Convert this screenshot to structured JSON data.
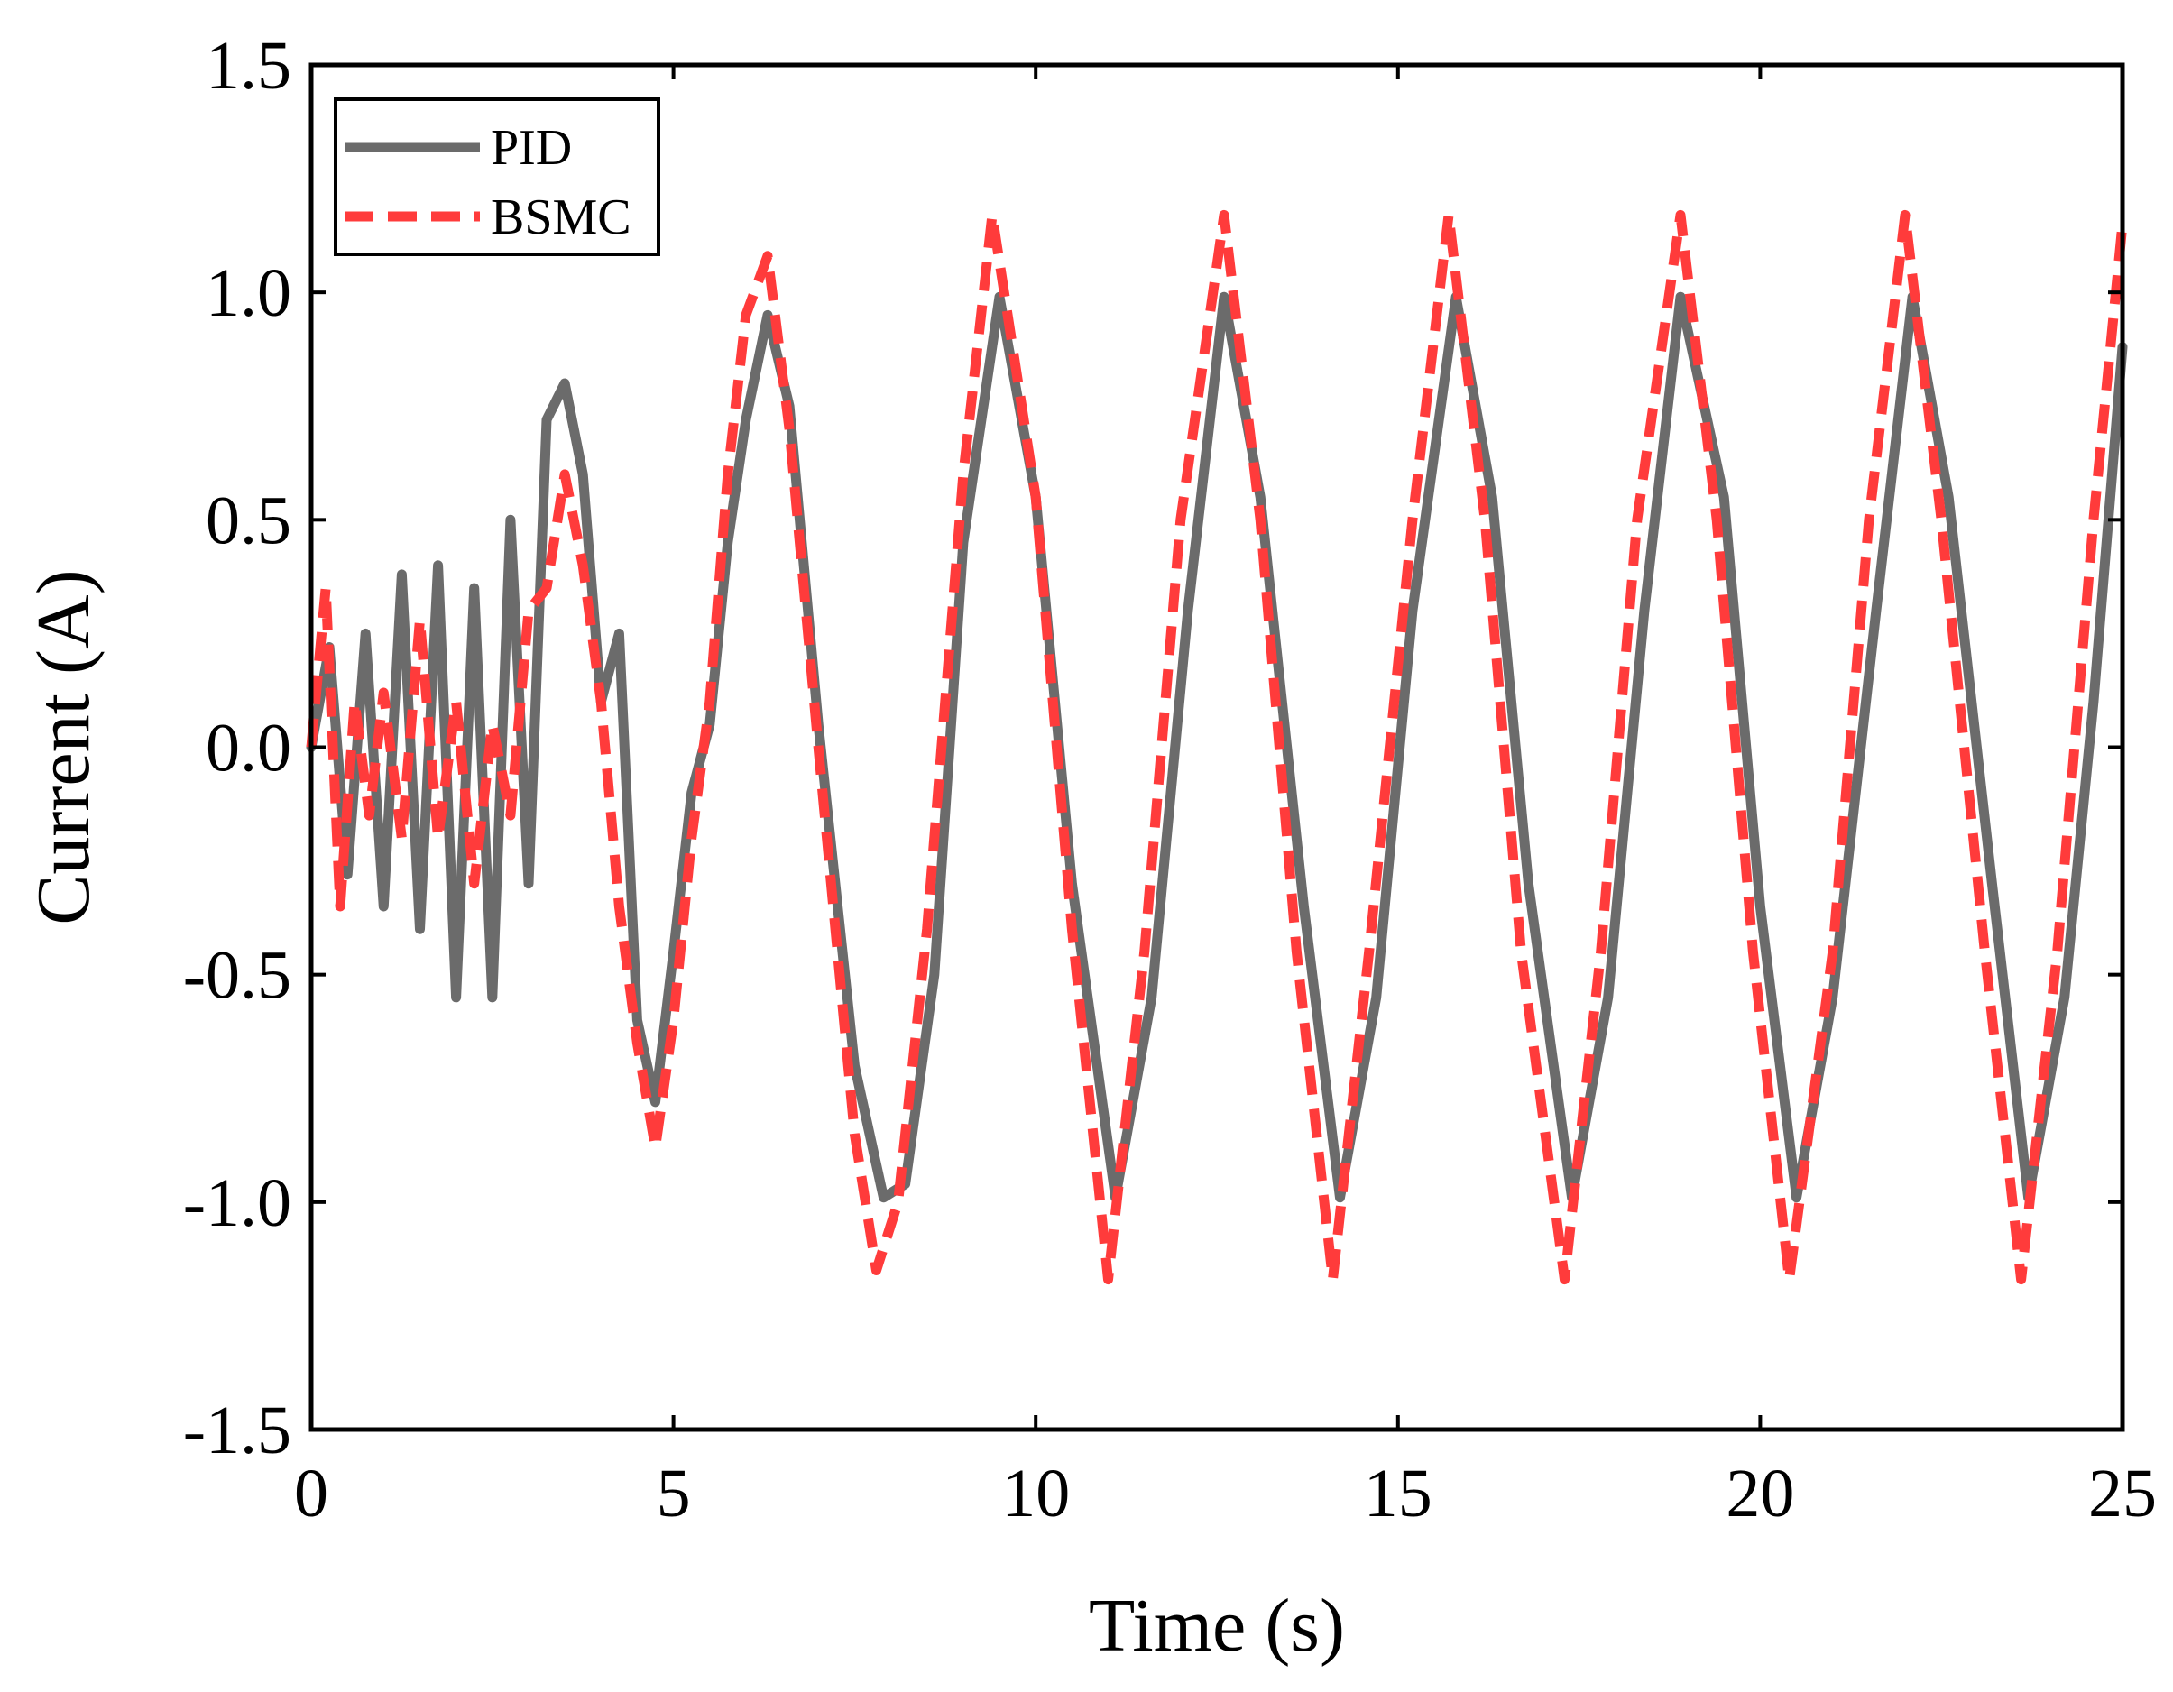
{
  "chart_data": {
    "type": "line",
    "xlabel": "Time (s)",
    "ylabel": "Current (A)",
    "xlim": [
      0,
      25
    ],
    "ylim": [
      -1.5,
      1.5
    ],
    "xticks": [
      0,
      5,
      10,
      15,
      20,
      25
    ],
    "xtick_labels": [
      "0",
      "5",
      "10",
      "15",
      "20",
      "25"
    ],
    "yticks": [
      -1.5,
      -1.0,
      -0.5,
      0.0,
      0.5,
      1.0,
      1.5
    ],
    "ytick_labels": [
      "-1.5",
      "-1.0",
      "-0.5",
      "0.0",
      "0.5",
      "1.0",
      "1.5"
    ],
    "grid": false,
    "legend_position": "top-left",
    "series": [
      {
        "name": "PID",
        "color": "#6b6b6b",
        "style": "solid",
        "x": [
          0,
          0.25,
          0.5,
          0.75,
          1,
          1.25,
          1.5,
          1.75,
          2,
          2.25,
          2.5,
          2.75,
          3,
          3.25,
          3.5,
          3.75,
          4,
          4.25,
          4.5,
          4.75,
          5,
          5.25,
          5.5,
          5.75,
          6,
          6.3,
          6.6,
          7,
          7.5,
          7.9,
          8.2,
          8.6,
          9.0,
          9.5,
          10.0,
          10.5,
          11.1,
          11.6,
          12.1,
          12.6,
          13.1,
          13.7,
          14.2,
          14.7,
          15.2,
          15.8,
          16.3,
          16.8,
          17.4,
          17.9,
          18.4,
          18.9,
          19.5,
          20.0,
          20.5,
          21.0,
          21.6,
          22.1,
          22.6,
          23.2,
          23.7,
          24.2,
          24.6,
          25
        ],
        "y": [
          0.0,
          0.22,
          -0.28,
          0.25,
          -0.35,
          0.38,
          -0.4,
          0.4,
          -0.55,
          0.35,
          -0.55,
          0.5,
          -0.3,
          0.72,
          0.8,
          0.6,
          0.1,
          0.25,
          -0.6,
          -0.78,
          -0.45,
          -0.1,
          0.05,
          0.45,
          0.72,
          0.95,
          0.75,
          0.05,
          -0.7,
          -0.99,
          -0.96,
          -0.5,
          0.45,
          0.99,
          0.55,
          -0.3,
          -0.99,
          -0.55,
          0.3,
          0.99,
          0.55,
          -0.35,
          -0.99,
          -0.55,
          0.3,
          0.99,
          0.55,
          -0.3,
          -0.99,
          -0.55,
          0.3,
          0.99,
          0.55,
          -0.35,
          -0.99,
          -0.55,
          0.3,
          0.99,
          0.55,
          -0.3,
          -0.99,
          -0.55,
          0.1,
          0.88
        ]
      },
      {
        "name": "BSMC",
        "color": "#ff3b3b",
        "style": "dashed",
        "x": [
          0,
          0.2,
          0.4,
          0.6,
          0.8,
          1,
          1.25,
          1.5,
          1.75,
          2,
          2.25,
          2.5,
          2.75,
          3,
          3.25,
          3.5,
          3.75,
          4,
          4.25,
          4.5,
          4.75,
          5,
          5.25,
          5.5,
          5.75,
          6,
          6.3,
          6.6,
          7,
          7.5,
          7.8,
          8.1,
          8.5,
          9.0,
          9.4,
          10.0,
          10.5,
          11.0,
          11.5,
          12.0,
          12.6,
          13.1,
          13.6,
          14.1,
          14.6,
          15.2,
          15.7,
          16.2,
          16.7,
          17.3,
          17.8,
          18.3,
          18.9,
          19.4,
          19.9,
          20.4,
          21.0,
          21.5,
          22.0,
          22.5,
          23.1,
          23.6,
          24.1,
          24.6,
          25
        ],
        "y": [
          0.0,
          0.35,
          -0.35,
          0.1,
          -0.15,
          0.12,
          -0.2,
          0.28,
          -0.2,
          0.1,
          -0.3,
          0.05,
          -0.15,
          0.3,
          0.35,
          0.6,
          0.4,
          0.1,
          -0.35,
          -0.65,
          -0.88,
          -0.6,
          -0.2,
          0.1,
          0.6,
          0.95,
          1.08,
          0.7,
          0.0,
          -0.85,
          -1.15,
          -1.0,
          -0.4,
          0.6,
          1.17,
          0.55,
          -0.4,
          -1.17,
          -0.45,
          0.5,
          1.17,
          0.5,
          -0.45,
          -1.17,
          -0.45,
          0.5,
          1.17,
          0.5,
          -0.45,
          -1.17,
          -0.45,
          0.5,
          1.17,
          0.5,
          -0.45,
          -1.17,
          -0.45,
          0.5,
          1.17,
          0.5,
          -0.45,
          -1.17,
          -0.45,
          0.5,
          1.15
        ]
      }
    ]
  }
}
